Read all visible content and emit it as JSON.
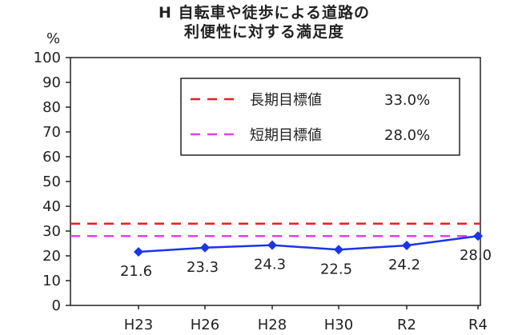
{
  "chart_data": {
    "type": "line",
    "title_line1": "H  自転車や徒歩による道路の",
    "title_line2": "利便性に対する満足度",
    "unit_label": "%",
    "categories": [
      "H23",
      "H26",
      "H28",
      "H30",
      "R2",
      "R4"
    ],
    "series": [
      {
        "values": [
          21.6,
          23.3,
          24.3,
          22.5,
          24.2,
          28.0
        ],
        "labels": [
          "21.6",
          "23.3",
          "24.3",
          "22.5",
          "24.2",
          "28.0"
        ],
        "color": "#1a35e6"
      }
    ],
    "targets": [
      {
        "label": "長期目標値",
        "value_text": "33.0%",
        "value": 33.0,
        "color": "#e82020"
      },
      {
        "label": "短期目標値",
        "value_text": "28.0%",
        "value": 28.0,
        "color": "#e040e8"
      }
    ],
    "ylim": [
      0,
      100
    ],
    "yticks": [
      0,
      10,
      20,
      30,
      40,
      50,
      60,
      70,
      80,
      90,
      100
    ],
    "legend_position": "top-right",
    "grid": false
  }
}
